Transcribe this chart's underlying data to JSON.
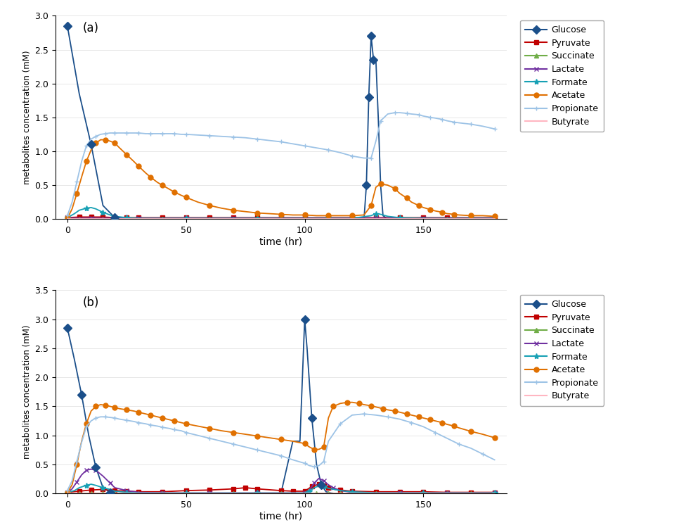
{
  "panel_a": {
    "label": "(a)",
    "ylim": [
      0,
      3.0
    ],
    "yticks": [
      0,
      0.5,
      1.0,
      1.5,
      2.0,
      2.5,
      3.0
    ],
    "xlim": [
      -5,
      185
    ],
    "xticks": [
      0,
      50,
      100,
      150
    ],
    "glucose": {
      "x": [
        0,
        5,
        10,
        15,
        20,
        25,
        30,
        40,
        50,
        60,
        70,
        80,
        90,
        100,
        110,
        120,
        125,
        126,
        127,
        128,
        129,
        130,
        131,
        132,
        133,
        135,
        140,
        150,
        160,
        170,
        180
      ],
      "y": [
        2.85,
        1.85,
        1.1,
        0.2,
        0.02,
        0.0,
        0.0,
        0.0,
        0.0,
        0.0,
        0.0,
        0.0,
        0.0,
        0.0,
        0.0,
        0.0,
        0.0,
        0.5,
        1.8,
        2.7,
        2.35,
        2.35,
        1.5,
        0.5,
        0.05,
        0.0,
        0.0,
        0.0,
        0.0,
        0.0,
        0.0
      ],
      "color": "#1b4f8a",
      "marker": "D",
      "markersize": 6,
      "markevery_indices": [
        0,
        2,
        4,
        17,
        18,
        19,
        20
      ]
    },
    "pyruvate": {
      "x": [
        0,
        5,
        10,
        15,
        20,
        25,
        30,
        40,
        50,
        60,
        70,
        80,
        90,
        100,
        110,
        120,
        130,
        140,
        150,
        160,
        170,
        180
      ],
      "y": [
        0.02,
        0.03,
        0.03,
        0.03,
        0.02,
        0.02,
        0.02,
        0.02,
        0.02,
        0.02,
        0.02,
        0.02,
        0.02,
        0.02,
        0.02,
        0.02,
        0.02,
        0.02,
        0.02,
        0.02,
        0.02,
        0.02
      ],
      "color": "#c00000",
      "marker": "s",
      "markersize": 4,
      "markevery": 1
    },
    "succinate": {
      "x": [
        0,
        5,
        10,
        15,
        20,
        25,
        30,
        40,
        50,
        60,
        70,
        80,
        90,
        100,
        110,
        120,
        130,
        140,
        150,
        160,
        170,
        180
      ],
      "y": [
        0.0,
        0.005,
        0.005,
        0.005,
        0.005,
        0.005,
        0.005,
        0.005,
        0.005,
        0.005,
        0.005,
        0.005,
        0.005,
        0.005,
        0.005,
        0.005,
        0.005,
        0.005,
        0.005,
        0.005,
        0.005,
        0.005
      ],
      "color": "#70ad47",
      "marker": "^",
      "markersize": 4,
      "markevery": 1
    },
    "lactate": {
      "x": [
        0,
        5,
        10,
        15,
        20,
        25,
        30,
        40,
        50,
        60,
        70,
        80,
        90,
        100,
        110,
        120,
        130,
        140,
        150,
        160,
        170,
        180
      ],
      "y": [
        0.01,
        0.01,
        0.01,
        0.01,
        0.01,
        0.01,
        0.01,
        0.01,
        0.01,
        0.01,
        0.01,
        0.01,
        0.01,
        0.01,
        0.01,
        0.01,
        0.01,
        0.01,
        0.01,
        0.01,
        0.01,
        0.01
      ],
      "color": "#7030a0",
      "marker": "x",
      "markersize": 5,
      "markevery": 2
    },
    "formate": {
      "x": [
        0,
        3,
        5,
        8,
        10,
        12,
        15,
        18,
        20,
        25,
        30,
        40,
        50,
        60,
        70,
        80,
        90,
        100,
        110,
        120,
        128,
        130,
        132,
        135,
        140,
        150,
        160,
        170,
        180
      ],
      "y": [
        0.02,
        0.08,
        0.13,
        0.16,
        0.17,
        0.15,
        0.1,
        0.06,
        0.04,
        0.02,
        0.01,
        0.01,
        0.01,
        0.01,
        0.01,
        0.01,
        0.01,
        0.01,
        0.01,
        0.01,
        0.05,
        0.08,
        0.07,
        0.04,
        0.02,
        0.01,
        0.01,
        0.01,
        0.01
      ],
      "color": "#17a0b4",
      "marker": "*",
      "markersize": 6,
      "markevery": 3
    },
    "acetate": {
      "x": [
        0,
        2,
        4,
        6,
        8,
        10,
        12,
        14,
        16,
        18,
        20,
        22,
        25,
        28,
        30,
        33,
        35,
        38,
        40,
        43,
        45,
        48,
        50,
        55,
        60,
        65,
        70,
        75,
        80,
        85,
        90,
        95,
        100,
        105,
        110,
        115,
        120,
        125,
        128,
        130,
        132,
        135,
        138,
        140,
        143,
        145,
        148,
        150,
        153,
        155,
        158,
        160,
        163,
        165,
        170,
        175,
        180
      ],
      "y": [
        0.01,
        0.15,
        0.38,
        0.62,
        0.85,
        1.02,
        1.12,
        1.17,
        1.17,
        1.15,
        1.12,
        1.05,
        0.95,
        0.85,
        0.78,
        0.68,
        0.62,
        0.54,
        0.5,
        0.44,
        0.4,
        0.35,
        0.32,
        0.25,
        0.2,
        0.16,
        0.13,
        0.11,
        0.09,
        0.08,
        0.07,
        0.06,
        0.06,
        0.05,
        0.05,
        0.05,
        0.05,
        0.06,
        0.2,
        0.47,
        0.52,
        0.5,
        0.45,
        0.38,
        0.31,
        0.25,
        0.2,
        0.17,
        0.14,
        0.12,
        0.1,
        0.08,
        0.07,
        0.06,
        0.05,
        0.05,
        0.04
      ],
      "color": "#e07000",
      "marker": "o",
      "markersize": 5,
      "markevery": 2
    },
    "propionate": {
      "x": [
        0,
        2,
        4,
        6,
        8,
        10,
        12,
        14,
        16,
        18,
        20,
        22,
        25,
        28,
        30,
        33,
        35,
        38,
        40,
        43,
        45,
        48,
        50,
        55,
        60,
        65,
        70,
        75,
        80,
        85,
        90,
        95,
        100,
        105,
        110,
        115,
        120,
        125,
        128,
        130,
        132,
        135,
        138,
        140,
        143,
        145,
        148,
        150,
        153,
        155,
        158,
        160,
        163,
        165,
        170,
        175,
        180
      ],
      "y": [
        0.05,
        0.25,
        0.55,
        0.85,
        1.08,
        1.18,
        1.22,
        1.25,
        1.26,
        1.27,
        1.27,
        1.27,
        1.27,
        1.27,
        1.27,
        1.26,
        1.26,
        1.26,
        1.26,
        1.26,
        1.26,
        1.25,
        1.25,
        1.24,
        1.23,
        1.22,
        1.21,
        1.2,
        1.18,
        1.16,
        1.14,
        1.11,
        1.08,
        1.05,
        1.02,
        0.98,
        0.93,
        0.9,
        0.9,
        1.15,
        1.45,
        1.55,
        1.57,
        1.57,
        1.56,
        1.55,
        1.54,
        1.52,
        1.5,
        1.49,
        1.47,
        1.45,
        1.43,
        1.42,
        1.4,
        1.37,
        1.33
      ],
      "color": "#9dc3e6",
      "marker": "+",
      "markersize": 5,
      "markevery": 2
    },
    "butyrate": {
      "x": [
        0,
        10,
        20,
        30,
        40,
        50,
        60,
        70,
        80,
        90,
        100,
        110,
        120,
        130,
        140,
        150,
        160,
        170,
        180
      ],
      "y": [
        0.005,
        0.005,
        0.005,
        0.005,
        0.005,
        0.005,
        0.005,
        0.005,
        0.005,
        0.005,
        0.005,
        0.005,
        0.005,
        0.005,
        0.005,
        0.005,
        0.005,
        0.005,
        0.005
      ],
      "color": "#ffb6c1",
      "marker": "None",
      "markersize": 4,
      "markevery": 1
    }
  },
  "panel_b": {
    "label": "(b)",
    "ylim": [
      0,
      3.5
    ],
    "yticks": [
      0,
      0.5,
      1.0,
      1.5,
      2.0,
      2.5,
      3.0,
      3.5
    ],
    "xlim": [
      -5,
      185
    ],
    "xticks": [
      0,
      50,
      100,
      150
    ],
    "glucose": {
      "x": [
        0,
        3,
        6,
        9,
        12,
        15,
        18,
        20,
        25,
        30,
        40,
        50,
        60,
        70,
        75,
        80,
        90,
        95,
        98,
        100,
        101,
        103,
        105,
        107,
        109,
        111,
        113,
        115,
        120,
        130,
        140,
        150,
        160,
        170,
        180
      ],
      "y": [
        2.85,
        2.3,
        1.7,
        1.0,
        0.45,
        0.1,
        0.02,
        0.0,
        0.0,
        0.0,
        0.0,
        0.0,
        0.0,
        0.0,
        0.0,
        0.0,
        0.0,
        0.9,
        0.9,
        3.0,
        2.5,
        1.3,
        0.5,
        0.15,
        0.03,
        0.01,
        0.0,
        0.0,
        0.0,
        0.0,
        0.0,
        0.0,
        0.0,
        0.0,
        0.0
      ],
      "color": "#1b4f8a",
      "marker": "D",
      "markersize": 6,
      "markevery_indices": [
        0,
        2,
        4,
        6,
        19,
        21,
        23
      ]
    },
    "pyruvate": {
      "x": [
        0,
        5,
        10,
        15,
        20,
        25,
        30,
        40,
        50,
        60,
        70,
        75,
        80,
        90,
        95,
        100,
        103,
        106,
        108,
        110,
        115,
        120,
        130,
        140,
        150,
        160,
        170,
        180
      ],
      "y": [
        0.02,
        0.04,
        0.06,
        0.07,
        0.05,
        0.04,
        0.03,
        0.03,
        0.05,
        0.06,
        0.08,
        0.1,
        0.08,
        0.05,
        0.04,
        0.04,
        0.12,
        0.16,
        0.14,
        0.1,
        0.06,
        0.04,
        0.03,
        0.03,
        0.03,
        0.02,
        0.02,
        0.02
      ],
      "color": "#c00000",
      "marker": "s",
      "markersize": 4,
      "markevery": 1
    },
    "succinate": {
      "x": [
        0,
        5,
        10,
        15,
        20,
        25,
        30,
        40,
        50,
        60,
        70,
        80,
        90,
        100,
        105,
        110,
        115,
        120,
        130,
        140,
        150,
        160,
        170,
        180
      ],
      "y": [
        0.0,
        0.005,
        0.005,
        0.005,
        0.005,
        0.005,
        0.005,
        0.005,
        0.005,
        0.005,
        0.005,
        0.005,
        0.005,
        0.005,
        0.005,
        0.005,
        0.005,
        0.005,
        0.005,
        0.005,
        0.005,
        0.005,
        0.005,
        0.005
      ],
      "color": "#70ad47",
      "marker": "^",
      "markersize": 4,
      "markevery": 1
    },
    "lactate": {
      "x": [
        0,
        2,
        4,
        6,
        8,
        10,
        12,
        15,
        18,
        20,
        25,
        30,
        40,
        50,
        60,
        70,
        80,
        90,
        100,
        102,
        104,
        106,
        108,
        110,
        112,
        115,
        120,
        130,
        140,
        150,
        160,
        170,
        180
      ],
      "y": [
        0.02,
        0.08,
        0.2,
        0.32,
        0.4,
        0.42,
        0.4,
        0.3,
        0.18,
        0.1,
        0.05,
        0.02,
        0.01,
        0.01,
        0.01,
        0.01,
        0.01,
        0.01,
        0.01,
        0.06,
        0.18,
        0.26,
        0.22,
        0.15,
        0.1,
        0.05,
        0.02,
        0.01,
        0.01,
        0.01,
        0.01,
        0.01,
        0.01
      ],
      "color": "#7030a0",
      "marker": "x",
      "markersize": 5,
      "markevery": 2
    },
    "formate": {
      "x": [
        0,
        3,
        5,
        8,
        10,
        12,
        15,
        18,
        20,
        25,
        30,
        40,
        50,
        60,
        70,
        80,
        90,
        100,
        102,
        104,
        106,
        108,
        110,
        115,
        120,
        130,
        140,
        150,
        160,
        170,
        180
      ],
      "y": [
        0.02,
        0.05,
        0.1,
        0.14,
        0.16,
        0.14,
        0.1,
        0.07,
        0.04,
        0.02,
        0.01,
        0.01,
        0.01,
        0.01,
        0.01,
        0.01,
        0.01,
        0.01,
        0.04,
        0.1,
        0.13,
        0.12,
        0.09,
        0.05,
        0.03,
        0.01,
        0.01,
        0.01,
        0.01,
        0.01,
        0.01
      ],
      "color": "#17a0b4",
      "marker": "*",
      "markersize": 6,
      "markevery": 3
    },
    "acetate": {
      "x": [
        0,
        2,
        4,
        6,
        8,
        10,
        12,
        14,
        16,
        18,
        20,
        22,
        25,
        28,
        30,
        33,
        35,
        38,
        40,
        43,
        45,
        48,
        50,
        55,
        60,
        65,
        70,
        75,
        80,
        85,
        90,
        95,
        100,
        102,
        104,
        106,
        108,
        110,
        112,
        115,
        118,
        120,
        123,
        125,
        128,
        130,
        133,
        135,
        138,
        140,
        143,
        145,
        148,
        150,
        153,
        155,
        158,
        160,
        163,
        165,
        170,
        175,
        180
      ],
      "y": [
        0.01,
        0.15,
        0.5,
        0.9,
        1.2,
        1.42,
        1.5,
        1.53,
        1.52,
        1.5,
        1.48,
        1.46,
        1.44,
        1.42,
        1.4,
        1.37,
        1.35,
        1.32,
        1.3,
        1.27,
        1.25,
        1.22,
        1.2,
        1.16,
        1.12,
        1.08,
        1.05,
        1.02,
        0.99,
        0.96,
        0.93,
        0.9,
        0.86,
        0.8,
        0.76,
        0.76,
        0.8,
        1.3,
        1.5,
        1.55,
        1.57,
        1.57,
        1.55,
        1.53,
        1.51,
        1.49,
        1.46,
        1.44,
        1.42,
        1.4,
        1.37,
        1.35,
        1.32,
        1.3,
        1.27,
        1.25,
        1.22,
        1.19,
        1.16,
        1.13,
        1.07,
        1.02,
        0.96
      ],
      "color": "#e07000",
      "marker": "o",
      "markersize": 5,
      "markevery": 2
    },
    "propionate": {
      "x": [
        0,
        2,
        4,
        6,
        8,
        10,
        12,
        14,
        16,
        18,
        20,
        22,
        25,
        28,
        30,
        33,
        35,
        38,
        40,
        43,
        45,
        48,
        50,
        55,
        60,
        65,
        70,
        75,
        80,
        85,
        90,
        95,
        100,
        102,
        104,
        106,
        108,
        110,
        115,
        120,
        125,
        130,
        135,
        140,
        145,
        150,
        155,
        160,
        165,
        170,
        175,
        180
      ],
      "y": [
        0.05,
        0.22,
        0.55,
        0.88,
        1.15,
        1.25,
        1.3,
        1.32,
        1.32,
        1.31,
        1.3,
        1.28,
        1.26,
        1.24,
        1.22,
        1.2,
        1.18,
        1.16,
        1.14,
        1.12,
        1.1,
        1.08,
        1.05,
        1.0,
        0.95,
        0.9,
        0.85,
        0.8,
        0.75,
        0.7,
        0.65,
        0.58,
        0.52,
        0.48,
        0.46,
        0.48,
        0.55,
        0.9,
        1.2,
        1.35,
        1.37,
        1.35,
        1.32,
        1.28,
        1.22,
        1.15,
        1.05,
        0.95,
        0.85,
        0.78,
        0.68,
        0.58
      ],
      "color": "#9dc3e6",
      "marker": "+",
      "markersize": 5,
      "markevery": 2
    },
    "butyrate": {
      "x": [
        0,
        10,
        20,
        30,
        40,
        50,
        60,
        70,
        80,
        90,
        100,
        110,
        120,
        130,
        140,
        150,
        160,
        170,
        180
      ],
      "y": [
        0.005,
        0.005,
        0.005,
        0.005,
        0.005,
        0.005,
        0.005,
        0.005,
        0.005,
        0.005,
        0.005,
        0.005,
        0.005,
        0.005,
        0.005,
        0.005,
        0.005,
        0.005,
        0.005
      ],
      "color": "#ffb6c1",
      "marker": "None",
      "markersize": 4,
      "markevery": 1
    }
  },
  "legend_labels": [
    "Glucose",
    "Pyruvate",
    "Succinate",
    "Lactate",
    "Formate",
    "Acetate",
    "Propionate",
    "Butyrate"
  ],
  "ylabel": "metabolites concentration (mM)",
  "xlabel": "time (hr)",
  "bg_color": "#ffffff"
}
